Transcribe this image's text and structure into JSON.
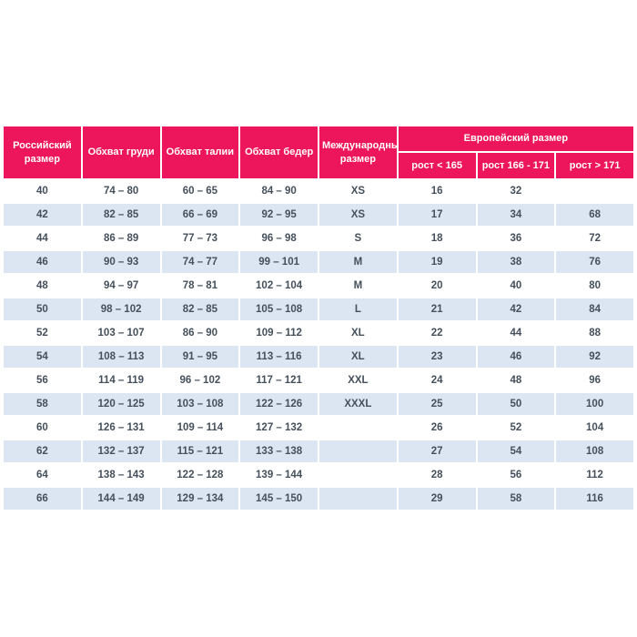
{
  "colors": {
    "header_bg": "#ed155b",
    "header_text": "#ffffff",
    "row_alt_bg": "#dce6f2",
    "row_bg": "#ffffff",
    "cell_text": "#45505c"
  },
  "chart_data": {
    "type": "table",
    "title": "",
    "columns": [
      "Российский размер",
      "Обхват груди",
      "Обхват талии",
      "Обхват бедер",
      "Международный размер",
      "рост < 165",
      "рост 166 - 171",
      "рост > 171"
    ],
    "column_group": {
      "label": "Европейский размер",
      "spans": [
        "рост < 165",
        "рост 166 - 171",
        "рост > 171"
      ]
    },
    "rows": [
      [
        "40",
        "74 – 80",
        "60 – 65",
        "84 – 90",
        "XS",
        "16",
        "32",
        ""
      ],
      [
        "42",
        "82 – 85",
        "66 – 69",
        "92 – 95",
        "XS",
        "17",
        "34",
        "68"
      ],
      [
        "44",
        "86 – 89",
        "77 – 73",
        "96 – 98",
        "S",
        "18",
        "36",
        "72"
      ],
      [
        "46",
        "90 – 93",
        "74 – 77",
        "99 – 101",
        "M",
        "19",
        "38",
        "76"
      ],
      [
        "48",
        "94 – 97",
        "78 – 81",
        "102 – 104",
        "M",
        "20",
        "40",
        "80"
      ],
      [
        "50",
        "98 – 102",
        "82 – 85",
        "105 – 108",
        "L",
        "21",
        "42",
        "84"
      ],
      [
        "52",
        "103 – 107",
        "86 – 90",
        "109 – 112",
        "XL",
        "22",
        "44",
        "88"
      ],
      [
        "54",
        "108 – 113",
        "91 – 95",
        "113 – 116",
        "XL",
        "23",
        "46",
        "92"
      ],
      [
        "56",
        "114 – 119",
        "96 – 102",
        "117 – 121",
        "XXL",
        "24",
        "48",
        "96"
      ],
      [
        "58",
        "120 – 125",
        "103 – 108",
        "122 – 126",
        "XXXL",
        "25",
        "50",
        "100"
      ],
      [
        "60",
        "126 – 131",
        "109 – 114",
        "127 – 132",
        "",
        "26",
        "52",
        "104"
      ],
      [
        "62",
        "132 – 137",
        "115 – 121",
        "133 – 138",
        "",
        "27",
        "54",
        "108"
      ],
      [
        "64",
        "138 – 143",
        "122 – 128",
        "139 – 144",
        "",
        "28",
        "56",
        "112"
      ],
      [
        "66",
        "144 – 149",
        "129 – 134",
        "145 – 150",
        "",
        "29",
        "58",
        "116"
      ]
    ]
  }
}
